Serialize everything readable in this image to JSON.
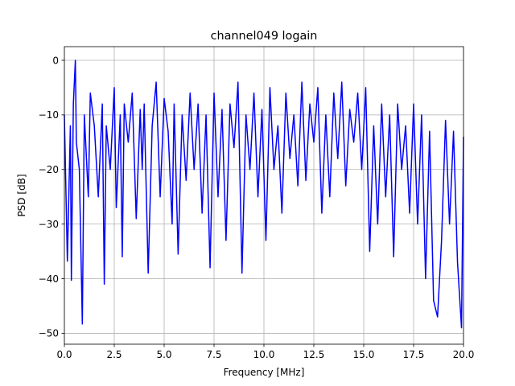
{
  "chart_data": {
    "type": "line",
    "title": "channel049 logain",
    "xlabel": "Frequency [MHz]",
    "ylabel": "PSD [dB]",
    "xlim": [
      0,
      20
    ],
    "ylim": [
      -52,
      2.5
    ],
    "xticks": [
      "0.0",
      "2.5",
      "5.0",
      "7.5",
      "10.0",
      "12.5",
      "15.0",
      "17.5",
      "20.0"
    ],
    "xtick_values": [
      0,
      2.5,
      5,
      7.5,
      10,
      12.5,
      15,
      17.5,
      20
    ],
    "yticks": [
      "0",
      "−10",
      "−20",
      "−30",
      "−40",
      "−50"
    ],
    "ytick_values": [
      0,
      -10,
      -20,
      -30,
      -40,
      -50
    ],
    "grid": true,
    "series": [
      {
        "color": "#0000ff",
        "x": [
          0.0,
          0.15,
          0.3,
          0.35,
          0.45,
          0.55,
          0.6,
          0.75,
          0.9,
          1.0,
          1.2,
          1.3,
          1.5,
          1.7,
          1.9,
          2.0,
          2.1,
          2.3,
          2.5,
          2.6,
          2.8,
          2.9,
          3.0,
          3.2,
          3.4,
          3.6,
          3.8,
          3.9,
          4.0,
          4.2,
          4.4,
          4.6,
          4.8,
          5.0,
          5.2,
          5.4,
          5.5,
          5.7,
          5.9,
          6.1,
          6.3,
          6.5,
          6.7,
          6.9,
          7.1,
          7.3,
          7.5,
          7.7,
          7.9,
          8.1,
          8.3,
          8.5,
          8.7,
          8.9,
          9.1,
          9.3,
          9.5,
          9.7,
          9.9,
          10.1,
          10.3,
          10.5,
          10.7,
          10.9,
          11.1,
          11.3,
          11.5,
          11.7,
          11.9,
          12.1,
          12.3,
          12.5,
          12.7,
          12.9,
          13.1,
          13.3,
          13.5,
          13.7,
          13.9,
          14.1,
          14.3,
          14.5,
          14.7,
          14.9,
          15.1,
          15.3,
          15.5,
          15.7,
          15.9,
          16.1,
          16.3,
          16.5,
          16.7,
          16.9,
          17.1,
          17.3,
          17.5,
          17.7,
          17.9,
          18.1,
          18.3,
          18.5,
          18.7,
          18.9,
          19.1,
          19.3,
          19.5,
          19.7,
          19.9,
          20.0
        ],
        "y": [
          -10,
          -36.8,
          -12,
          -40.3,
          -8,
          0,
          -15,
          -20,
          -48.3,
          -10,
          -25,
          -6,
          -12,
          -25,
          -8,
          -41,
          -12,
          -20,
          -5,
          -27,
          -10,
          -36,
          -8,
          -15,
          -6,
          -29,
          -9,
          -20,
          -8,
          -39,
          -12,
          -4,
          -25,
          -7,
          -13,
          -30,
          -8,
          -35.5,
          -10,
          -22,
          -6,
          -20,
          -8,
          -28,
          -10,
          -38,
          -6,
          -25,
          -9,
          -33,
          -8,
          -16,
          -4,
          -39,
          -10,
          -20,
          -6,
          -25,
          -9,
          -33,
          -5,
          -20,
          -12,
          -28,
          -6,
          -18,
          -10,
          -23,
          -4,
          -22,
          -8,
          -15,
          -5,
          -28,
          -10,
          -25,
          -6,
          -18,
          -4,
          -23,
          -9,
          -15,
          -6,
          -20,
          -5,
          -35,
          -12,
          -30,
          -8,
          -25,
          -10,
          -36,
          -8,
          -20,
          -12,
          -28,
          -8,
          -30,
          -10,
          -40,
          -13,
          -44,
          -47,
          -33,
          -11,
          -30,
          -13,
          -37,
          -49,
          -14
        ]
      }
    ]
  }
}
